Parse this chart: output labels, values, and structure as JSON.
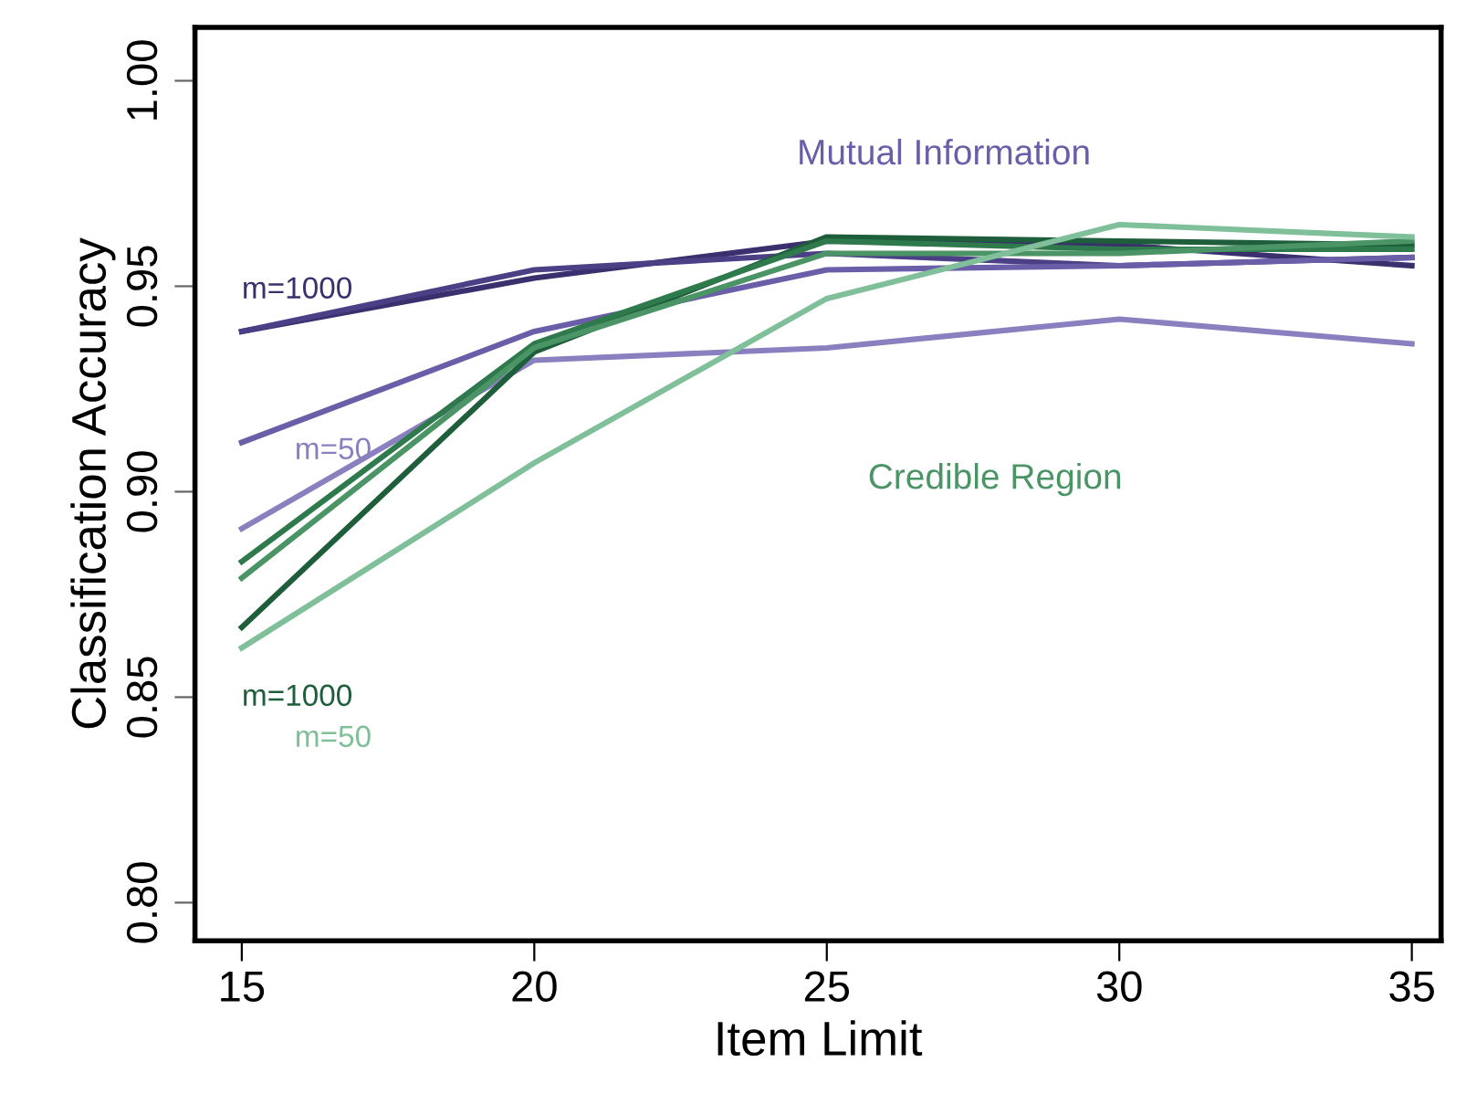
{
  "chart_data": {
    "type": "line",
    "xlabel": "Item Limit",
    "ylabel": "Classification Accuracy",
    "x": [
      15,
      20,
      25,
      30,
      35
    ],
    "series": [
      {
        "color": "#3b2f6e",
        "values": [
          0.939,
          0.952,
          0.961,
          0.96,
          0.955
        ]
      },
      {
        "color": "#4b3f85",
        "values": [
          0.939,
          0.954,
          0.958,
          0.955,
          0.957
        ]
      },
      {
        "color": "#6a5ea8",
        "values": [
          0.912,
          0.939,
          0.954,
          0.955,
          0.957
        ]
      },
      {
        "color": "#8a7fbf",
        "values": [
          0.891,
          0.932,
          0.935,
          0.942,
          0.936
        ]
      },
      {
        "color": "#1e5e3a",
        "values": [
          0.867,
          0.934,
          0.962,
          0.961,
          0.96
        ]
      },
      {
        "color": "#2f7a4c",
        "values": [
          0.883,
          0.936,
          0.961,
          0.959,
          0.959
        ]
      },
      {
        "color": "#4a9466",
        "values": [
          0.879,
          0.935,
          0.958,
          0.958,
          0.961
        ]
      },
      {
        "color": "#7fbf99",
        "values": [
          0.862,
          0.907,
          0.947,
          0.965,
          0.962
        ]
      }
    ],
    "annotations": [
      "Mutual Information",
      "m=1000",
      "m=50",
      "Credible Region",
      "m=1000",
      "m=50"
    ],
    "xlim": [
      14.2,
      35.5
    ],
    "ylim": [
      0.7907,
      1.013
    ],
    "xticks": [
      15,
      20,
      25,
      30,
      35
    ],
    "yticks": [
      {
        "value": 0.8,
        "label": "0.80"
      },
      {
        "value": 0.85,
        "label": "0.85"
      },
      {
        "value": 0.9,
        "label": "0.90"
      },
      {
        "value": 0.95,
        "label": "0.95"
      },
      {
        "value": 1.0,
        "label": "1.00"
      }
    ],
    "grid": false,
    "legend": false,
    "marker": "none",
    "line_style": "solid"
  }
}
